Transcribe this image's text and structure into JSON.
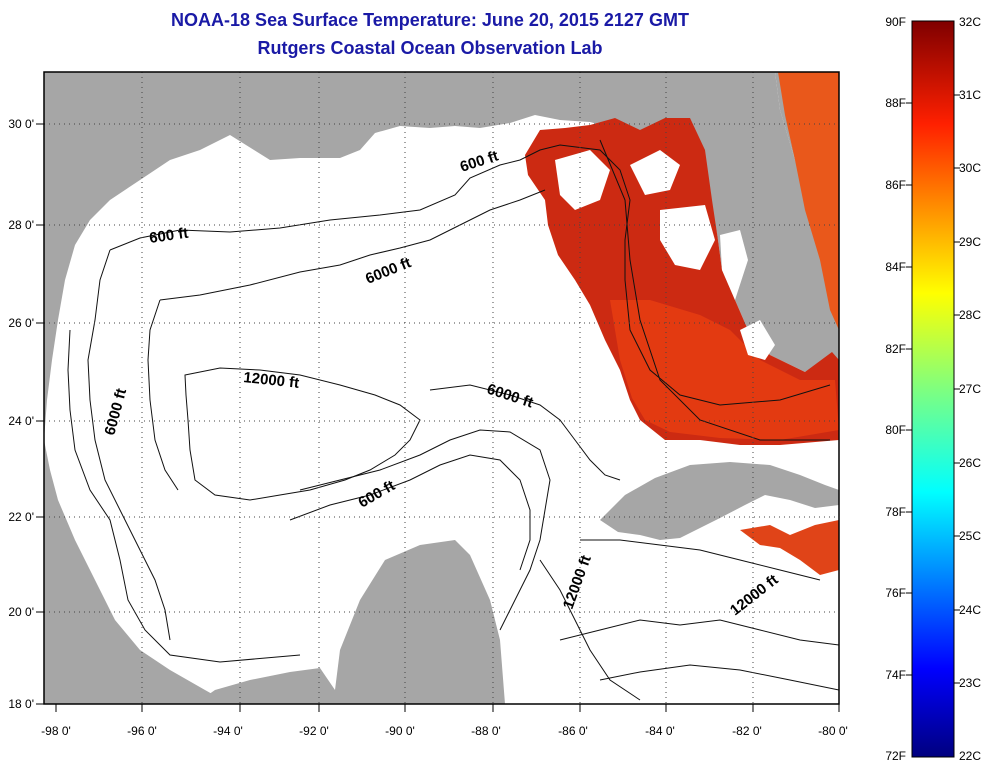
{
  "header": {
    "title": "NOAA-18 Sea Surface Temperature:  June 20, 2015 2127 GMT",
    "subtitle": "Rutgers Coastal Ocean Observation Lab"
  },
  "map": {
    "lon_range": [
      -98,
      -80
    ],
    "lat_range": [
      18,
      31
    ],
    "x_ticks": [
      "-98 0'",
      "-96 0'",
      "-94 0'",
      "-92 0'",
      "-90 0'",
      "-88 0'",
      "-86 0'",
      "-84 0'",
      "-82 0'",
      "-80 0'"
    ],
    "y_ticks": [
      "18 0'",
      "20 0'",
      "22 0'",
      "24 0'",
      "26 0'",
      "28 0'",
      "30 0'"
    ],
    "grid": "dotted",
    "contour_labels": [
      "600 ft",
      "600 ft",
      "6000 ft",
      "6000 ft",
      "6000 ft",
      "12000 ft",
      "600 ft",
      "12000 ft",
      "12000 ft"
    ]
  },
  "colorbar": {
    "fahrenheit": [
      "90F",
      "88F",
      "86F",
      "84F",
      "82F",
      "80F",
      "78F",
      "76F",
      "74F",
      "72F"
    ],
    "celsius": [
      "32C",
      "31C",
      "30C",
      "29C",
      "28C",
      "27C",
      "26C",
      "25C",
      "24C",
      "23C",
      "22C"
    ],
    "range_f": [
      72,
      90
    ],
    "range_c": [
      22,
      32
    ]
  },
  "colors": {
    "title": "#1a1aa6",
    "land": "#a6a6a6",
    "ocean_nodata": "#ffffff",
    "sst_warm": "#d42a10"
  }
}
